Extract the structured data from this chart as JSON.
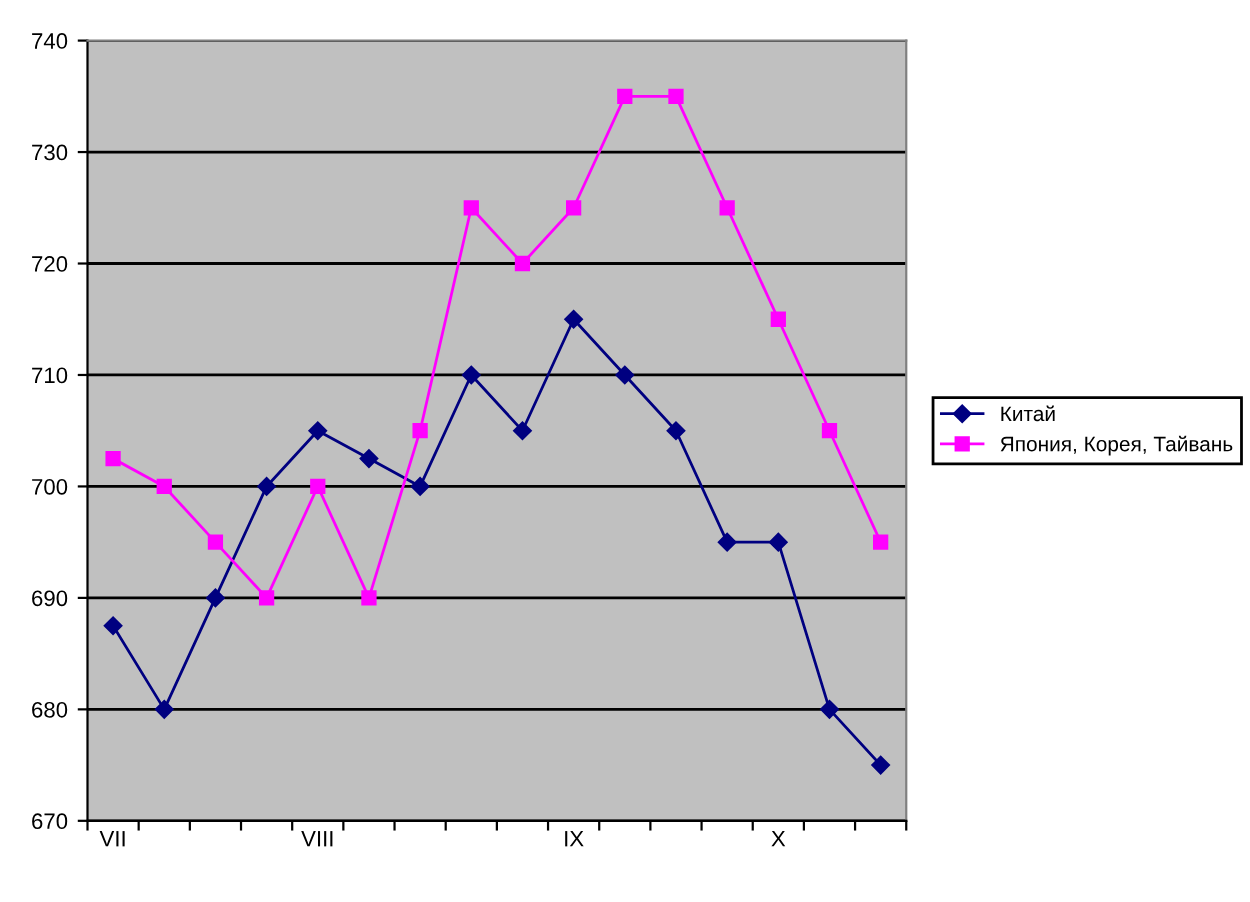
{
  "chart_data": {
    "type": "line",
    "categories": [
      "VII",
      null,
      null,
      null,
      "VIII",
      null,
      null,
      null,
      null,
      "IX",
      null,
      null,
      null,
      "X",
      null,
      null
    ],
    "series": [
      {
        "name": "Китай",
        "color": "#000080",
        "marker": "diamond",
        "values": [
          687.5,
          680,
          690,
          700,
          705,
          702.5,
          700,
          710,
          705,
          715,
          710,
          705,
          695,
          695,
          680,
          675
        ]
      },
      {
        "name": "Япония, Корея, Тайвань",
        "color": "#ff00ff",
        "marker": "square",
        "values": [
          702.5,
          700,
          695,
          690,
          700,
          690,
          705,
          725,
          720,
          725,
          735,
          735,
          725,
          715,
          705,
          695
        ]
      }
    ],
    "ylim": [
      670,
      740
    ],
    "yticks": [
      670,
      680,
      690,
      700,
      710,
      720,
      730,
      740
    ],
    "grid": "y",
    "legend": "right"
  }
}
